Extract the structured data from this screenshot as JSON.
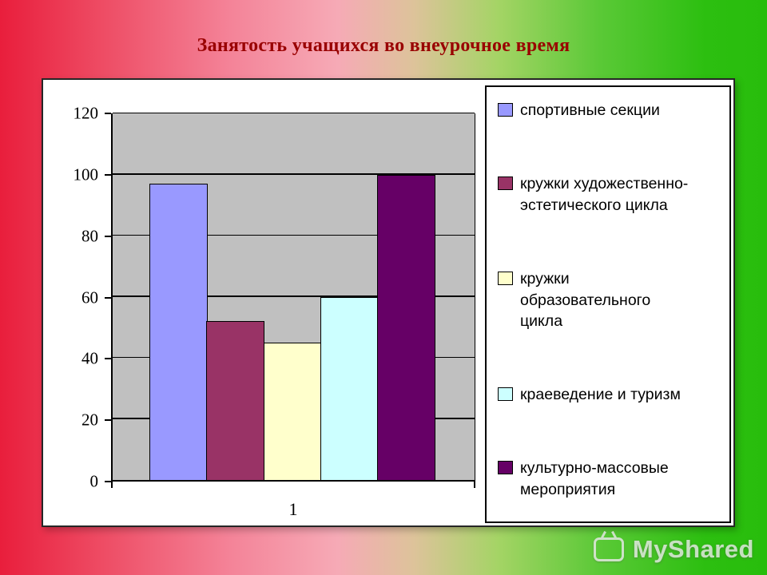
{
  "slide": {
    "title": "Занятость учащихся во внеурочное время",
    "watermark_text": "MyShared"
  },
  "chart_data": {
    "type": "bar",
    "title": "Занятость учащихся во внеурочное время",
    "xlabel": "",
    "ylabel": "",
    "categories": [
      "1"
    ],
    "series": [
      {
        "name": "спортивные секции",
        "legend_label": "спортивные секции",
        "color": "#9999FF",
        "values": [
          97
        ]
      },
      {
        "name": "кружки художественно-эстетического цикла",
        "legend_label": "кружки художественно-\nэстетического цикла",
        "color": "#993366",
        "values": [
          52
        ]
      },
      {
        "name": "кружки образовательного цикла",
        "legend_label": "кружки\nобразовательного\nцикла",
        "color": "#FFFFCC",
        "values": [
          45
        ]
      },
      {
        "name": "краеведение и туризм",
        "legend_label": "краеведение и туризм",
        "color": "#CCFFFF",
        "values": [
          60
        ]
      },
      {
        "name": "культурно-массовые мероприятия",
        "legend_label": "культурно-массовые\nмероприятия",
        "color": "#660066",
        "values": [
          100
        ]
      }
    ],
    "ylim": [
      0,
      120
    ],
    "yticks": [
      0,
      20,
      40,
      60,
      80,
      100,
      120
    ],
    "grid": true,
    "legend_position": "right",
    "plot_background": "#C0C0C0"
  },
  "colors": {
    "title_text": "#990000",
    "gradient_left": "#E91E3C",
    "gradient_middle": "#F6AAB6",
    "gradient_right": "#28BD0C",
    "axis_and_grid": "#000000"
  }
}
